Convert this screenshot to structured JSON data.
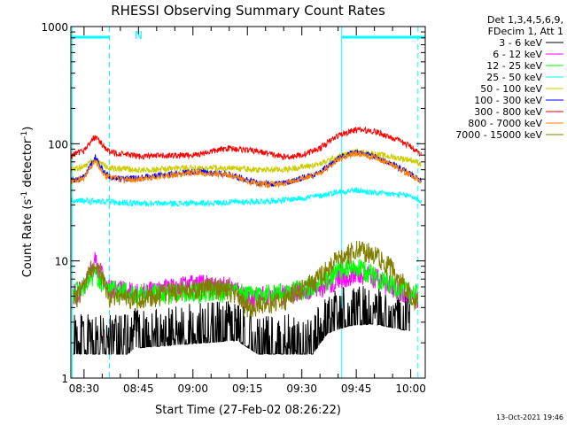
{
  "chart_data": {
    "type": "line",
    "title": "RHESSI Observing Summary Count Rates",
    "xlabel": "Start Time (27-Feb-02 08:26:22)",
    "ylabel_main": "Count Rate (s",
    "ylabel_sup1": "-1",
    "ylabel_mid": " detector",
    "ylabel_sup2": "-1",
    "ylabel_end": ")",
    "y_scale": "log",
    "ylim": [
      1,
      1000
    ],
    "xlim_minutes": [
      26.37,
      124.0
    ],
    "x_ticks": [
      {
        "minute": 30,
        "label": "08:30"
      },
      {
        "minute": 45,
        "label": "08:45"
      },
      {
        "minute": 60,
        "label": "09:00"
      },
      {
        "minute": 75,
        "label": "09:15"
      },
      {
        "minute": 90,
        "label": "09:30"
      },
      {
        "minute": 105,
        "label": "09:45"
      },
      {
        "minute": 120,
        "label": "10:00"
      }
    ],
    "y_ticks": [
      {
        "value": 1,
        "label": "1"
      },
      {
        "value": 10,
        "label": "10"
      },
      {
        "value": 100,
        "label": "100"
      },
      {
        "value": 1000,
        "label": "1000"
      }
    ],
    "legend_header": [
      "Det 1,3,4,5,6,9,",
      "FDecim 1, Att 1"
    ],
    "legend_position": "outside-right",
    "series": [
      {
        "name": "3 - 6 keV",
        "color": "#000000",
        "x": [
          27,
          42,
          44,
          72,
          78,
          93,
          97,
          103,
          110,
          120
        ],
        "y": [
          1.6,
          1.6,
          1.8,
          2.1,
          1.6,
          1.6,
          2.4,
          2.8,
          2.9,
          2.5
        ]
      },
      {
        "name": "6 - 12 keV",
        "color": "#ff00ff",
        "x": [
          27,
          30,
          33,
          37,
          45,
          60,
          70,
          75,
          85,
          95,
          100,
          105,
          110,
          118,
          122
        ],
        "y": [
          5.2,
          6,
          10,
          5.8,
          5.4,
          6.3,
          6.2,
          4.8,
          5.3,
          5.8,
          7.2,
          7.8,
          7.2,
          5.5,
          5.0
        ]
      },
      {
        "name": "12 - 25 keV",
        "color": "#00ff00",
        "x": [
          27,
          30,
          33,
          37,
          45,
          60,
          70,
          75,
          85,
          95,
          100,
          105,
          110,
          118,
          122
        ],
        "y": [
          5.3,
          6,
          8,
          5.7,
          5.3,
          5.5,
          5.5,
          5.2,
          5.4,
          6.2,
          8.2,
          8.8,
          7.6,
          5.6,
          5.2
        ]
      },
      {
        "name": "25 - 50 keV",
        "color": "#00ffff",
        "x": [
          26.4,
          35,
          45,
          60,
          75,
          85,
          95,
          100,
          105,
          110,
          115,
          120,
          123
        ],
        "y": [
          33,
          32,
          31,
          31,
          32,
          33,
          36,
          39,
          40,
          38,
          37,
          36,
          32
        ]
      },
      {
        "name": "50 - 100 keV",
        "color": "#cccc00",
        "x": [
          26.4,
          30,
          33,
          37,
          45,
          60,
          70,
          78,
          85,
          95,
          100,
          105,
          110,
          115,
          120,
          123
        ],
        "y": [
          60,
          64,
          72,
          62,
          60,
          62,
          62,
          60,
          60,
          67,
          78,
          85,
          82,
          77,
          73,
          67
        ]
      },
      {
        "name": "100 - 300 keV",
        "color": "#0000ff",
        "x": [
          26.4,
          30,
          33,
          36,
          40,
          45,
          60,
          70,
          78,
          85,
          95,
          100,
          105,
          110,
          115,
          120,
          123
        ],
        "y": [
          49,
          52,
          78,
          54,
          50,
          51,
          58,
          55,
          46,
          46,
          57,
          75,
          85,
          78,
          67,
          55,
          48
        ]
      },
      {
        "name": "300 - 800 keV",
        "color": "#ff0000",
        "x": [
          26.4,
          30,
          33,
          37,
          45,
          60,
          70,
          78,
          85,
          90,
          95,
          100,
          105,
          110,
          115,
          120,
          123
        ],
        "y": [
          78,
          88,
          115,
          85,
          78,
          80,
          92,
          86,
          77,
          80,
          92,
          118,
          132,
          128,
          112,
          95,
          80
        ]
      },
      {
        "name": "800 - 7000 keV",
        "color": "#ff8000",
        "x": [
          26.4,
          30,
          33,
          36,
          40,
          45,
          60,
          70,
          78,
          85,
          95,
          100,
          105,
          110,
          115,
          120,
          123
        ],
        "y": [
          48,
          51,
          72,
          53,
          49,
          50,
          57,
          54,
          45,
          45,
          56,
          73,
          83,
          77,
          66,
          54,
          47
        ]
      },
      {
        "name": "7000 - 15000 keV",
        "color": "#808000",
        "x": [
          27,
          30,
          33,
          37,
          45,
          60,
          70,
          75,
          80,
          85,
          95,
          100,
          105,
          110,
          115,
          120,
          122
        ],
        "y": [
          4.6,
          6,
          10,
          5,
          4.7,
          5.9,
          5.8,
          4.1,
          4.3,
          4.6,
          7.3,
          10.5,
          12.5,
          11.5,
          8.6,
          5.2,
          4.5
        ]
      }
    ],
    "annotations": {
      "attenuator_marker": "N",
      "top_bar_segments": [
        [
          26.4,
          37.0
        ],
        [
          101.0,
          124.0
        ]
      ],
      "solid_vertical_lines": [
        26.8,
        101.0
      ],
      "dashed_vertical_lines": [
        37.0,
        122.0
      ]
    },
    "footer_timestamp": "13-Oct-2021 19:46"
  }
}
